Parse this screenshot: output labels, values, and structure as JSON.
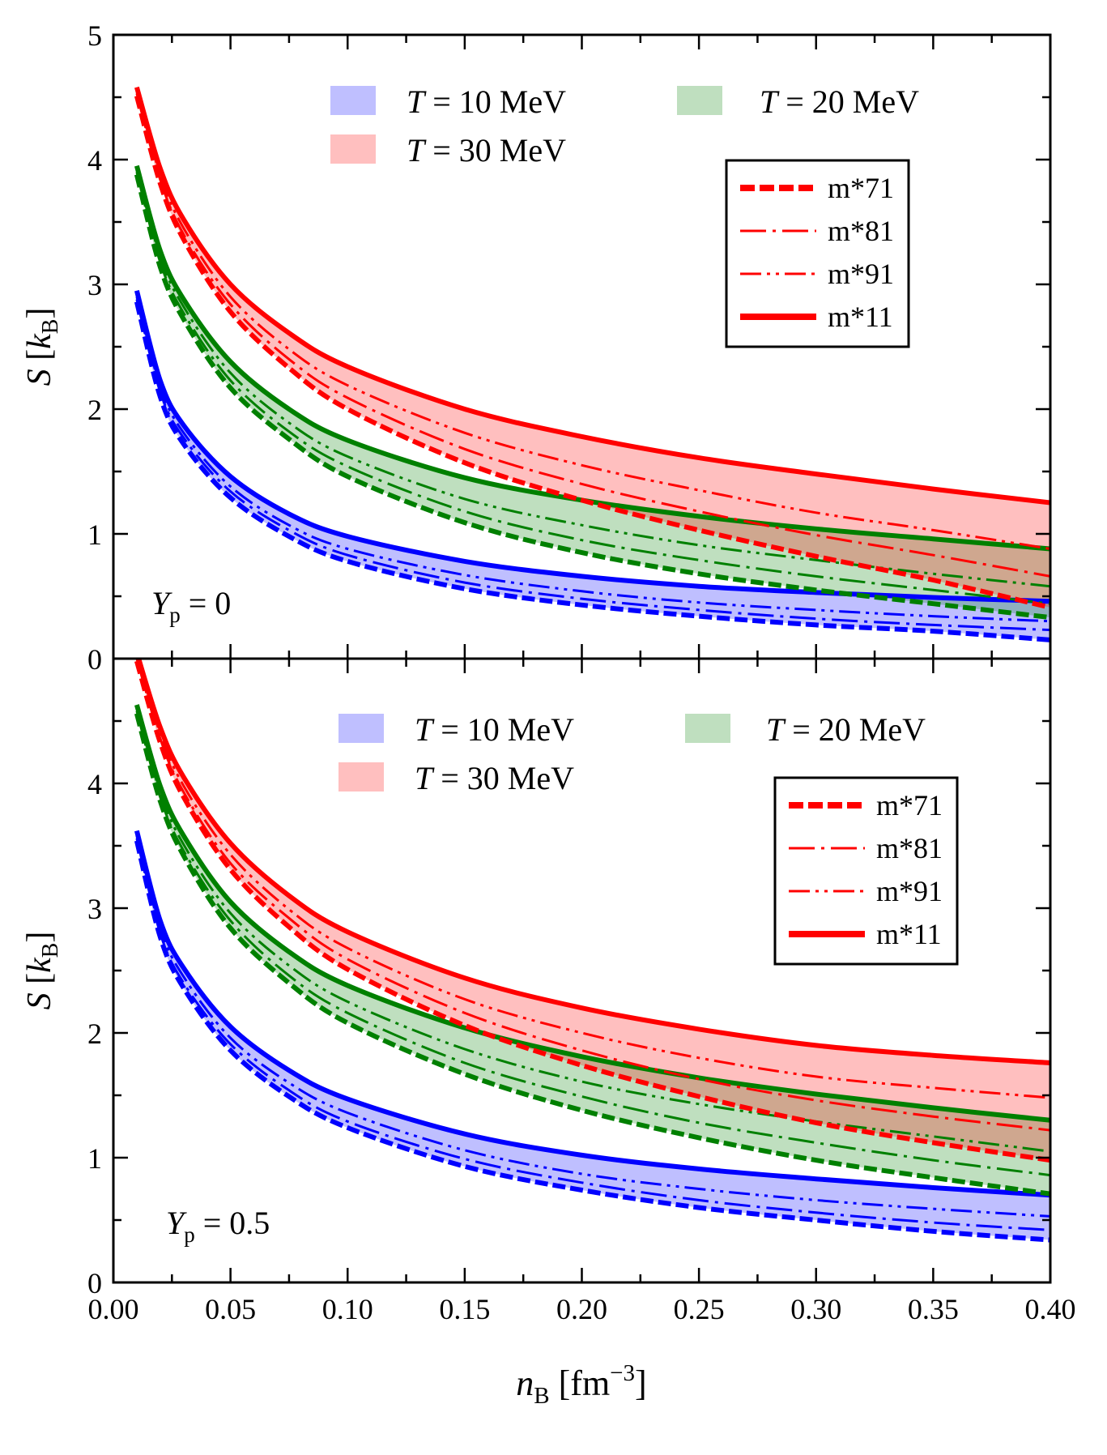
{
  "figure": {
    "x_axis_label": {
      "main": "n",
      "sub": "B",
      "unit_open": " [fm",
      "unit_sup": "−3",
      "unit_close": "]"
    },
    "y_axis_label": {
      "main": "S",
      "unit_open": " [",
      "unit_italic": "k",
      "unit_sub": "B",
      "unit_close": "]"
    },
    "x_tick_labels": [
      "0.00",
      "0.05",
      "0.10",
      "0.15",
      "0.20",
      "0.25",
      "0.30",
      "0.35",
      "0.40"
    ],
    "band_legend": [
      {
        "symbol": "T",
        "text": " = 10 MeV",
        "color": "#0000ff"
      },
      {
        "symbol": "T",
        "text": " = 20 MeV",
        "color": "#008000"
      },
      {
        "symbol": "T",
        "text": " = 30 MeV",
        "color": "#ff0000"
      }
    ],
    "line_legend": [
      {
        "label": "m*71",
        "style": "dashed-thick"
      },
      {
        "label": "m*81",
        "style": "dash-dot"
      },
      {
        "label": "m*91",
        "style": "dash-dot-dot"
      },
      {
        "label": "m*11",
        "style": "solid-thick"
      }
    ]
  },
  "chart_data": [
    {
      "type": "line",
      "panel": "top",
      "annotation": {
        "main": "Y",
        "sub": "p",
        "text": " = 0"
      },
      "xlabel": "n_B [fm^-3]",
      "ylabel": "S [k_B]",
      "xlim": [
        0.0,
        0.4
      ],
      "ylim": [
        0,
        5
      ],
      "y_tick_labels": [
        "0",
        "1",
        "2",
        "3",
        "4",
        "5"
      ],
      "x_sample": [
        0.01,
        0.02,
        0.03,
        0.05,
        0.075,
        0.1,
        0.15,
        0.2,
        0.25,
        0.3,
        0.35,
        0.4
      ],
      "series": [
        {
          "T": "10 MeV",
          "model": "m*11",
          "values": [
            2.95,
            2.23,
            1.87,
            1.46,
            1.16,
            0.98,
            0.78,
            0.66,
            0.58,
            0.53,
            0.49,
            0.46
          ]
        },
        {
          "T": "10 MeV",
          "model": "m*91",
          "values": [
            2.9,
            2.18,
            1.81,
            1.38,
            1.07,
            0.88,
            0.67,
            0.54,
            0.45,
            0.39,
            0.34,
            0.3
          ]
        },
        {
          "T": "10 MeV",
          "model": "m*81",
          "values": [
            2.88,
            2.14,
            1.77,
            1.34,
            1.03,
            0.83,
            0.61,
            0.48,
            0.39,
            0.32,
            0.27,
            0.23
          ]
        },
        {
          "T": "10 MeV",
          "model": "m*71",
          "values": [
            2.86,
            2.1,
            1.72,
            1.29,
            0.98,
            0.78,
            0.56,
            0.43,
            0.34,
            0.27,
            0.22,
            0.15
          ]
        },
        {
          "T": "20 MeV",
          "model": "m*11",
          "values": [
            3.95,
            3.27,
            2.88,
            2.38,
            2.0,
            1.75,
            1.45,
            1.27,
            1.14,
            1.04,
            0.96,
            0.88
          ]
        },
        {
          "T": "20 MeV",
          "model": "m*91",
          "values": [
            3.92,
            3.22,
            2.82,
            2.29,
            1.89,
            1.62,
            1.28,
            1.07,
            0.91,
            0.79,
            0.68,
            0.58
          ]
        },
        {
          "T": "20 MeV",
          "model": "m*81",
          "values": [
            3.9,
            3.18,
            2.77,
            2.23,
            1.82,
            1.54,
            1.18,
            0.95,
            0.79,
            0.66,
            0.55,
            0.44
          ]
        },
        {
          "T": "20 MeV",
          "model": "m*71",
          "values": [
            3.88,
            3.14,
            2.72,
            2.17,
            1.76,
            1.46,
            1.09,
            0.85,
            0.68,
            0.55,
            0.44,
            0.33
          ]
        },
        {
          "T": "30 MeV",
          "model": "m*11",
          "values": [
            4.58,
            3.93,
            3.52,
            3.0,
            2.61,
            2.34,
            2.0,
            1.78,
            1.61,
            1.48,
            1.36,
            1.25
          ]
        },
        {
          "T": "30 MeV",
          "model": "m*91",
          "values": [
            4.55,
            3.88,
            3.45,
            2.9,
            2.48,
            2.19,
            1.81,
            1.55,
            1.35,
            1.17,
            1.03,
            0.88
          ]
        },
        {
          "T": "30 MeV",
          "model": "m*81",
          "values": [
            4.53,
            3.84,
            3.4,
            2.84,
            2.4,
            2.09,
            1.68,
            1.4,
            1.18,
            0.99,
            0.83,
            0.66
          ]
        },
        {
          "T": "30 MeV",
          "model": "m*71",
          "values": [
            4.51,
            3.81,
            3.36,
            2.78,
            2.33,
            2.0,
            1.57,
            1.27,
            1.03,
            0.82,
            0.63,
            0.41
          ]
        }
      ]
    },
    {
      "type": "line",
      "panel": "bottom",
      "annotation": {
        "main": "Y",
        "sub": "p",
        "text": " = 0.5"
      },
      "xlabel": "n_B [fm^-3]",
      "ylabel": "S [k_B]",
      "xlim": [
        0.0,
        0.4
      ],
      "ylim": [
        0,
        5
      ],
      "y_tick_labels": [
        "0",
        "1",
        "2",
        "3",
        "4"
      ],
      "x_sample": [
        0.01,
        0.02,
        0.03,
        0.05,
        0.075,
        0.1,
        0.15,
        0.2,
        0.25,
        0.3,
        0.35,
        0.4
      ],
      "series": [
        {
          "T": "10 MeV",
          "model": "m*11",
          "values": [
            3.62,
            2.9,
            2.52,
            2.05,
            1.7,
            1.47,
            1.19,
            1.02,
            0.91,
            0.83,
            0.76,
            0.7
          ]
        },
        {
          "T": "10 MeV",
          "model": "m*91",
          "values": [
            3.58,
            2.84,
            2.45,
            1.96,
            1.6,
            1.36,
            1.06,
            0.87,
            0.75,
            0.66,
            0.59,
            0.53
          ]
        },
        {
          "T": "10 MeV",
          "model": "m*81",
          "values": [
            3.56,
            2.8,
            2.4,
            1.91,
            1.54,
            1.29,
            0.99,
            0.8,
            0.66,
            0.56,
            0.48,
            0.42
          ]
        },
        {
          "T": "10 MeV",
          "model": "m*71",
          "values": [
            3.54,
            2.77,
            2.36,
            1.86,
            1.49,
            1.24,
            0.93,
            0.74,
            0.6,
            0.5,
            0.41,
            0.34
          ]
        },
        {
          "T": "20 MeV",
          "model": "m*11",
          "values": [
            4.63,
            3.98,
            3.58,
            3.05,
            2.65,
            2.38,
            2.04,
            1.81,
            1.64,
            1.51,
            1.4,
            1.3
          ]
        },
        {
          "T": "20 MeV",
          "model": "m*91",
          "values": [
            4.6,
            3.93,
            3.51,
            2.96,
            2.54,
            2.25,
            1.87,
            1.61,
            1.43,
            1.29,
            1.17,
            1.05
          ]
        },
        {
          "T": "20 MeV",
          "model": "m*81",
          "values": [
            4.58,
            3.89,
            3.46,
            2.9,
            2.46,
            2.16,
            1.76,
            1.49,
            1.28,
            1.12,
            0.98,
            0.86
          ]
        },
        {
          "T": "20 MeV",
          "model": "m*71",
          "values": [
            4.56,
            3.86,
            3.42,
            2.84,
            2.4,
            2.08,
            1.67,
            1.38,
            1.16,
            0.98,
            0.84,
            0.71
          ]
        },
        {
          "T": "30 MeV",
          "model": "m*11",
          "values": [
            5.05,
            4.45,
            4.05,
            3.52,
            3.1,
            2.81,
            2.44,
            2.2,
            2.03,
            1.9,
            1.82,
            1.76
          ]
        },
        {
          "T": "30 MeV",
          "model": "m*91",
          "values": [
            5.02,
            4.4,
            3.98,
            3.43,
            2.99,
            2.68,
            2.27,
            2.0,
            1.8,
            1.65,
            1.56,
            1.48
          ]
        },
        {
          "T": "30 MeV",
          "model": "m*81",
          "values": [
            5.0,
            4.36,
            3.93,
            3.36,
            2.92,
            2.59,
            2.16,
            1.86,
            1.63,
            1.46,
            1.33,
            1.22
          ]
        },
        {
          "T": "30 MeV",
          "model": "m*71",
          "values": [
            4.98,
            4.33,
            3.89,
            3.31,
            2.85,
            2.51,
            2.06,
            1.74,
            1.49,
            1.28,
            1.12,
            0.98
          ]
        }
      ]
    }
  ]
}
